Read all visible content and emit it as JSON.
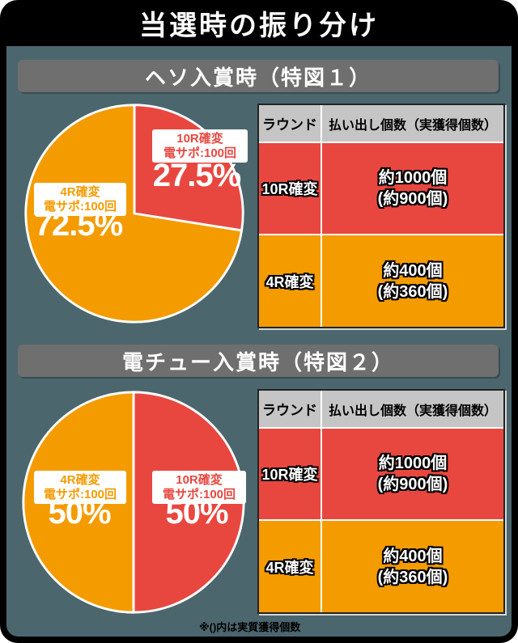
{
  "page_title": "当選時の振り分け",
  "footnote": "※()内は実質獲得個数",
  "colors": {
    "frame": "#000000",
    "panel_bg": "#4C666E",
    "section_header_bg": "#6F6F6F",
    "table_header_bg": "#C5C5C5",
    "red": "#E84740",
    "orange": "#F49B00",
    "white": "#FFFFFF"
  },
  "sections": [
    {
      "header": "ヘソ入賞時（特図１）",
      "pie": {
        "slices": [
          {
            "label_line1": "4R確変",
            "label_line2": "電サポ:100回",
            "pct": "72.5%"
          },
          {
            "label_line1": "10R確変",
            "label_line2": "電サポ:100回",
            "pct": "27.5%"
          }
        ]
      },
      "table": {
        "col1_header": "ラウンド",
        "col2_header": "払い出し個数（実獲得個数）",
        "rows": [
          {
            "round": "10R確変",
            "payout": "約1000個",
            "actual": "(約900個)"
          },
          {
            "round": "4R確変",
            "payout": "約400個",
            "actual": "(約360個)"
          }
        ]
      }
    },
    {
      "header": "電チュー入賞時（特図２）",
      "pie": {
        "slices": [
          {
            "label_line1": "4R確変",
            "label_line2": "電サポ:100回",
            "pct": "50%"
          },
          {
            "label_line1": "10R確変",
            "label_line2": "電サポ:100回",
            "pct": "50%"
          }
        ]
      },
      "table": {
        "col1_header": "ラウンド",
        "col2_header": "払い出し個数（実獲得個数）",
        "rows": [
          {
            "round": "10R確変",
            "payout": "約1000個",
            "actual": "(約900個)"
          },
          {
            "round": "4R確変",
            "payout": "約400個",
            "actual": "(約360個)"
          }
        ]
      }
    }
  ],
  "chart_data": [
    {
      "type": "pie",
      "title": "ヘソ入賞時（特図1） 当選時の振り分け",
      "start_angle": "top",
      "direction": "clockwise",
      "slices": [
        {
          "label": "10R確変 電サポ:100回",
          "value": 27.5,
          "color": "#E84740"
        },
        {
          "label": "4R確変 電サポ:100回",
          "value": 72.5,
          "color": "#F49B00"
        }
      ]
    },
    {
      "type": "pie",
      "title": "電チュー入賞時（特図2） 当選時の振り分け",
      "start_angle": "top",
      "direction": "clockwise",
      "slices": [
        {
          "label": "10R確変 電サポ:100回",
          "value": 50,
          "color": "#E84740"
        },
        {
          "label": "4R確変 電サポ:100回",
          "value": 50,
          "color": "#F49B00"
        }
      ]
    },
    {
      "type": "table",
      "title": "ヘソ入賞時（特図1）",
      "columns": [
        "ラウンド",
        "払い出し個数（実獲得個数）"
      ],
      "rows": [
        [
          "10R確変",
          "約1000個 (約900個)"
        ],
        [
          "4R確変",
          "約400個 (約360個)"
        ]
      ]
    },
    {
      "type": "table",
      "title": "電チュー入賞時（特図2）",
      "columns": [
        "ラウンド",
        "払い出し個数（実獲得個数）"
      ],
      "rows": [
        [
          "10R確変",
          "約1000個 (約900個)"
        ],
        [
          "4R確変",
          "約400個 (約360個)"
        ]
      ]
    }
  ]
}
